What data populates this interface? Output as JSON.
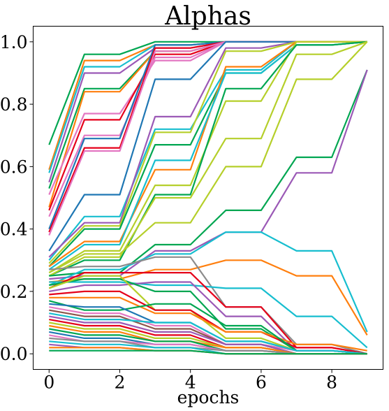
{
  "chart_data": {
    "type": "line",
    "title": "Alphas",
    "xlabel": "epochs",
    "ylabel": "",
    "x": [
      0,
      1,
      2,
      3,
      4,
      5,
      6,
      7,
      8,
      9
    ],
    "xlim": [
      -0.45,
      9.45
    ],
    "ylim": [
      -0.05,
      1.05
    ],
    "xticks": [
      0,
      2,
      4,
      6,
      8
    ],
    "xtick_labels": [
      "0",
      "2",
      "4",
      "6",
      "8"
    ],
    "yticks": [
      0.0,
      0.2,
      0.4,
      0.6,
      0.8,
      1.0
    ],
    "ytick_labels": [
      "0.0",
      "0.2",
      "0.4",
      "0.6",
      "0.8",
      "1.0"
    ],
    "grid": false,
    "legend": "none",
    "series": [
      {
        "color": "#00a651",
        "values": [
          0.67,
          0.96,
          0.96,
          1.0,
          1.0,
          1.0,
          1.0,
          1.0,
          1.0,
          1.0
        ]
      },
      {
        "color": "#ff7f0e",
        "values": [
          0.59,
          0.94,
          0.94,
          0.99,
          0.99,
          1.0,
          1.0,
          1.0,
          1.0,
          1.0
        ]
      },
      {
        "color": "#17becf",
        "values": [
          0.58,
          0.92,
          0.92,
          0.99,
          0.99,
          1.0,
          1.0,
          1.0,
          1.0,
          1.0
        ]
      },
      {
        "color": "#9b59b6",
        "values": [
          0.55,
          0.9,
          0.9,
          0.98,
          0.98,
          1.0,
          1.0,
          1.0,
          1.0,
          1.0
        ]
      },
      {
        "color": "#00a651",
        "values": [
          0.53,
          0.85,
          0.85,
          0.97,
          0.97,
          1.0,
          1.0,
          1.0,
          1.0,
          1.0
        ]
      },
      {
        "color": "#ff7f0e",
        "values": [
          0.47,
          0.84,
          0.84,
          0.97,
          0.97,
          1.0,
          1.0,
          1.0,
          1.0,
          1.0
        ]
      },
      {
        "color": "#e377c2",
        "values": [
          0.51,
          0.77,
          0.77,
          0.94,
          0.94,
          1.0,
          1.0,
          1.0,
          1.0,
          1.0
        ]
      },
      {
        "color": "#e5001a",
        "values": [
          0.46,
          0.75,
          0.75,
          0.96,
          0.96,
          1.0,
          1.0,
          1.0,
          1.0,
          1.0
        ]
      },
      {
        "color": "#e377c2",
        "values": [
          0.44,
          0.7,
          0.7,
          0.95,
          0.95,
          1.0,
          1.0,
          1.0,
          1.0,
          1.0
        ]
      },
      {
        "color": "#1f77b4",
        "values": [
          0.4,
          0.69,
          0.69,
          0.99,
          0.99,
          1.0,
          1.0,
          1.0,
          1.0,
          1.0
        ]
      },
      {
        "color": "#e5001a",
        "values": [
          0.39,
          0.66,
          0.66,
          0.98,
          0.98,
          1.0,
          1.0,
          1.0,
          1.0,
          1.0
        ]
      },
      {
        "color": "#e377c2",
        "values": [
          0.38,
          0.65,
          0.65,
          0.97,
          0.97,
          1.0,
          1.0,
          1.0,
          1.0,
          1.0
        ]
      },
      {
        "color": "#1f77b4",
        "values": [
          0.33,
          0.51,
          0.51,
          0.88,
          0.88,
          1.0,
          1.0,
          1.0,
          1.0,
          1.0
        ]
      },
      {
        "color": "#17becf",
        "values": [
          0.3,
          0.44,
          0.44,
          0.72,
          0.72,
          0.91,
          0.91,
          1.0,
          1.0,
          1.0
        ]
      },
      {
        "color": "#9b59b6",
        "values": [
          0.31,
          0.42,
          0.42,
          0.76,
          0.76,
          0.98,
          0.98,
          1.0,
          1.0,
          1.0
        ]
      },
      {
        "color": "#b5cf2a",
        "values": [
          0.29,
          0.41,
          0.41,
          0.71,
          0.71,
          0.97,
          0.97,
          1.0,
          1.0,
          1.0
        ]
      },
      {
        "color": "#00a651",
        "values": [
          0.28,
          0.4,
          0.4,
          0.67,
          0.67,
          0.9,
          0.9,
          0.99,
          0.99,
          1.0
        ]
      },
      {
        "color": "#ff7f0e",
        "values": [
          0.28,
          0.36,
          0.36,
          0.59,
          0.59,
          0.92,
          0.92,
          1.0,
          1.0,
          1.0
        ]
      },
      {
        "color": "#17becf",
        "values": [
          0.27,
          0.35,
          0.35,
          0.62,
          0.62,
          0.9,
          0.9,
          0.99,
          0.99,
          1.0
        ]
      },
      {
        "color": "#b5cf2a",
        "values": [
          0.26,
          0.33,
          0.33,
          0.54,
          0.54,
          0.81,
          0.81,
          1.0,
          1.0,
          1.0
        ]
      },
      {
        "color": "#00a651",
        "values": [
          0.25,
          0.3,
          0.3,
          0.51,
          0.51,
          0.85,
          0.85,
          0.99,
          0.99,
          1.0
        ]
      },
      {
        "color": "#b5cf2a",
        "values": [
          0.25,
          0.31,
          0.31,
          0.5,
          0.5,
          0.69,
          0.69,
          0.96,
          0.96,
          1.0
        ]
      },
      {
        "color": "#b5cf2a",
        "values": [
          0.26,
          0.32,
          0.32,
          0.42,
          0.42,
          0.6,
          0.6,
          0.88,
          0.88,
          1.0
        ]
      },
      {
        "color": "#00a651",
        "values": [
          0.25,
          0.26,
          0.26,
          0.35,
          0.35,
          0.46,
          0.46,
          0.63,
          0.63,
          0.91
        ]
      },
      {
        "color": "#9b59b6",
        "values": [
          0.24,
          0.25,
          0.25,
          0.33,
          0.33,
          0.39,
          0.39,
          0.58,
          0.58,
          0.91
        ]
      },
      {
        "color": "#17becf",
        "values": [
          0.22,
          0.27,
          0.27,
          0.32,
          0.32,
          0.39,
          0.39,
          0.33,
          0.33,
          0.07
        ]
      },
      {
        "color": "#ff7f0e",
        "values": [
          0.23,
          0.24,
          0.24,
          0.27,
          0.27,
          0.3,
          0.3,
          0.25,
          0.25,
          0.06
        ]
      },
      {
        "color": "#8c8c8c",
        "values": [
          0.27,
          0.28,
          0.28,
          0.31,
          0.31,
          0.15,
          0.15,
          0.03,
          0.03,
          0.0
        ]
      },
      {
        "color": "#17becf",
        "values": [
          0.23,
          0.23,
          0.23,
          0.22,
          0.22,
          0.21,
          0.21,
          0.12,
          0.12,
          0.02
        ]
      },
      {
        "color": "#e5001a",
        "values": [
          0.21,
          0.26,
          0.26,
          0.26,
          0.26,
          0.15,
          0.15,
          0.02,
          0.02,
          0.0
        ]
      },
      {
        "color": "#9b59b6",
        "values": [
          0.2,
          0.22,
          0.22,
          0.23,
          0.23,
          0.12,
          0.12,
          0.01,
          0.01,
          0.0
        ]
      },
      {
        "color": "#00a651",
        "values": [
          0.22,
          0.24,
          0.24,
          0.2,
          0.2,
          0.08,
          0.08,
          0.01,
          0.01,
          0.0
        ]
      },
      {
        "color": "#b5cf2a",
        "values": [
          0.21,
          0.25,
          0.25,
          0.14,
          0.14,
          0.05,
          0.05,
          0.01,
          0.01,
          0.0
        ]
      },
      {
        "color": "#e5001a",
        "values": [
          0.19,
          0.2,
          0.2,
          0.14,
          0.14,
          0.07,
          0.07,
          0.02,
          0.02,
          0.0
        ]
      },
      {
        "color": "#ff7f0e",
        "values": [
          0.18,
          0.18,
          0.18,
          0.13,
          0.13,
          0.07,
          0.07,
          0.03,
          0.03,
          0.01
        ]
      },
      {
        "color": "#00a651",
        "values": [
          0.17,
          0.14,
          0.14,
          0.16,
          0.16,
          0.09,
          0.09,
          0.01,
          0.01,
          0.0
        ]
      },
      {
        "color": "#1f77b4",
        "values": [
          0.16,
          0.15,
          0.15,
          0.1,
          0.1,
          0.04,
          0.04,
          0.01,
          0.01,
          0.0
        ]
      },
      {
        "color": "#e377c2",
        "values": [
          0.15,
          0.13,
          0.13,
          0.09,
          0.09,
          0.03,
          0.03,
          0.01,
          0.01,
          0.0
        ]
      },
      {
        "color": "#8c564b",
        "values": [
          0.14,
          0.12,
          0.12,
          0.08,
          0.08,
          0.03,
          0.03,
          0.0,
          0.0,
          0.0
        ]
      },
      {
        "color": "#17becf",
        "values": [
          0.13,
          0.11,
          0.11,
          0.1,
          0.1,
          0.04,
          0.04,
          0.01,
          0.01,
          0.0
        ]
      },
      {
        "color": "#9b59b6",
        "values": [
          0.12,
          0.1,
          0.1,
          0.07,
          0.07,
          0.03,
          0.03,
          0.0,
          0.0,
          0.0
        ]
      },
      {
        "color": "#e5001a",
        "values": [
          0.11,
          0.09,
          0.09,
          0.06,
          0.06,
          0.02,
          0.02,
          0.0,
          0.0,
          0.0
        ]
      },
      {
        "color": "#b5cf2a",
        "values": [
          0.1,
          0.08,
          0.08,
          0.05,
          0.05,
          0.02,
          0.02,
          0.0,
          0.0,
          0.0
        ]
      },
      {
        "color": "#ff7f0e",
        "values": [
          0.09,
          0.07,
          0.07,
          0.04,
          0.04,
          0.02,
          0.02,
          0.0,
          0.0,
          0.0
        ]
      },
      {
        "color": "#00a651",
        "values": [
          0.08,
          0.06,
          0.06,
          0.04,
          0.04,
          0.01,
          0.01,
          0.0,
          0.0,
          0.0
        ]
      },
      {
        "color": "#1f77b4",
        "values": [
          0.07,
          0.05,
          0.05,
          0.03,
          0.03,
          0.01,
          0.01,
          0.0,
          0.0,
          0.0
        ]
      },
      {
        "color": "#e377c2",
        "values": [
          0.06,
          0.04,
          0.04,
          0.03,
          0.03,
          0.01,
          0.01,
          0.0,
          0.0,
          0.0
        ]
      },
      {
        "color": "#8c8c8c",
        "values": [
          0.05,
          0.04,
          0.04,
          0.02,
          0.02,
          0.01,
          0.01,
          0.0,
          0.0,
          0.0
        ]
      },
      {
        "color": "#17becf",
        "values": [
          0.04,
          0.03,
          0.03,
          0.02,
          0.02,
          0.0,
          0.0,
          0.0,
          0.0,
          0.0
        ]
      },
      {
        "color": "#9b59b6",
        "values": [
          0.03,
          0.02,
          0.02,
          0.01,
          0.01,
          0.0,
          0.0,
          0.0,
          0.0,
          0.0
        ]
      },
      {
        "color": "#ff7f0e",
        "values": [
          0.02,
          0.02,
          0.02,
          0.01,
          0.01,
          0.0,
          0.0,
          0.0,
          0.0,
          0.0
        ]
      },
      {
        "color": "#00a651",
        "values": [
          0.01,
          0.01,
          0.01,
          0.01,
          0.01,
          0.0,
          0.0,
          0.0,
          0.0,
          0.0
        ]
      }
    ]
  }
}
